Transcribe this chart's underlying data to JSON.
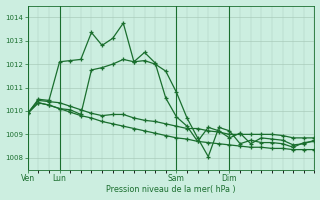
{
  "bg_color": "#cceee0",
  "grid_color": "#aaccbb",
  "line_color": "#1a6e2e",
  "xlabel": "Pression niveau de la mer( hPa )",
  "ylim": [
    1007.5,
    1014.5
  ],
  "yticks": [
    1008,
    1009,
    1010,
    1011,
    1012,
    1013,
    1014
  ],
  "xtick_labels": [
    "Ven",
    "Lun",
    "Sam",
    "Dim"
  ],
  "xtick_pos": [
    0,
    3,
    14,
    19
  ],
  "vline_pos": [
    0,
    3,
    14,
    19
  ],
  "total_points": 28,
  "line1_x": [
    0,
    1,
    2,
    3,
    4,
    5,
    6,
    7,
    8,
    9,
    10,
    11,
    12,
    13,
    14,
    15,
    16,
    17,
    18,
    19,
    20,
    21,
    22,
    23,
    24,
    25,
    26,
    27
  ],
  "line1_y": [
    1009.9,
    1010.5,
    1010.45,
    1012.1,
    1012.15,
    1012.2,
    1013.35,
    1012.8,
    1013.1,
    1013.75,
    1012.1,
    1012.5,
    1012.05,
    1010.55,
    1009.75,
    1009.35,
    1008.7,
    1009.3,
    1009.15,
    1008.85,
    1009.05,
    1008.6,
    1008.85,
    1008.8,
    1008.75,
    1008.55,
    1008.6,
    1008.75
  ],
  "line2_x": [
    0,
    1,
    2,
    3,
    4,
    5,
    6,
    7,
    8,
    9,
    10,
    11,
    12,
    13,
    14,
    15,
    16,
    17,
    18,
    19,
    20,
    21,
    22,
    23,
    24,
    25,
    26,
    27
  ],
  "line2_y": [
    1009.9,
    1010.45,
    1010.4,
    1010.35,
    1010.2,
    1010.05,
    1009.9,
    1009.8,
    1009.85,
    1009.85,
    1009.7,
    1009.6,
    1009.55,
    1009.45,
    1009.35,
    1009.25,
    1009.25,
    1009.15,
    1009.1,
    1009.0,
    1009.0,
    1009.0,
    1009.0,
    1009.0,
    1008.95,
    1008.85,
    1008.85,
    1008.85
  ],
  "line3_x": [
    0,
    1,
    2,
    3,
    4,
    5,
    6,
    7,
    8,
    9,
    10,
    11,
    12,
    13,
    14,
    15,
    16,
    17,
    18,
    19,
    20,
    21,
    22,
    23,
    24,
    25,
    26,
    27
  ],
  "line3_y": [
    1009.9,
    1010.35,
    1010.25,
    1010.1,
    1009.95,
    1009.8,
    1009.7,
    1009.55,
    1009.45,
    1009.35,
    1009.25,
    1009.15,
    1009.05,
    1008.95,
    1008.85,
    1008.8,
    1008.7,
    1008.65,
    1008.6,
    1008.55,
    1008.5,
    1008.45,
    1008.45,
    1008.4,
    1008.4,
    1008.35,
    1008.35,
    1008.35
  ],
  "line4_x": [
    0,
    1,
    2,
    3,
    4,
    5,
    6,
    7,
    8,
    9,
    10,
    11,
    12,
    13,
    14,
    15,
    16,
    17,
    18,
    19,
    20,
    21,
    22,
    23,
    24,
    25,
    26,
    27
  ],
  "line4_y": [
    1009.9,
    1010.35,
    1010.25,
    1010.1,
    1010.05,
    1009.85,
    1011.75,
    1011.85,
    1012.0,
    1012.2,
    1012.1,
    1012.15,
    1012.0,
    1011.7,
    1010.8,
    1009.7,
    1008.85,
    1008.05,
    1009.3,
    1009.15,
    1008.6,
    1008.75,
    1008.65,
    1008.65,
    1008.6,
    1008.45,
    1008.65,
    1008.7
  ]
}
